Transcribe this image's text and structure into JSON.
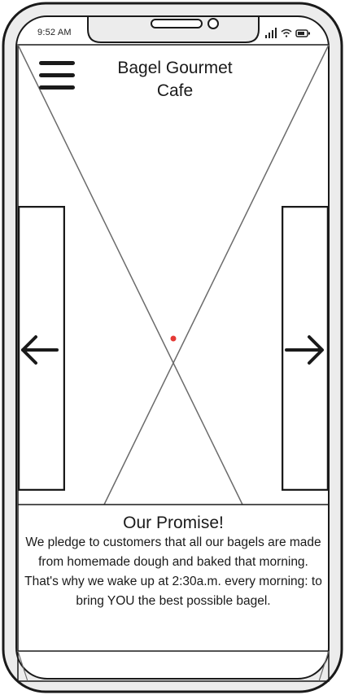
{
  "status_bar": {
    "time": "9:52 AM",
    "icons": [
      "signal-icon",
      "wifi-icon",
      "battery-icon"
    ]
  },
  "header": {
    "menu_icon": "hamburger-menu-icon",
    "title_line1": "Bagel Gourmet",
    "title_line2": "Cafe"
  },
  "carousel": {
    "image_placeholder": "image-placeholder",
    "prev_icon": "arrow-left-icon",
    "next_icon": "arrow-right-icon",
    "indicator_color": "#e53935"
  },
  "promise": {
    "title": "Our Promise!",
    "body": "We pledge to customers that all our bagels are made from homemade dough and baked that morning. That's why we wake up at 2:30a.m. every morning: to bring YOU the best possible bagel."
  },
  "colors": {
    "ink": "#1a1a1a",
    "wire": "#6b6b6b",
    "frame_fill": "#eeeeee"
  }
}
